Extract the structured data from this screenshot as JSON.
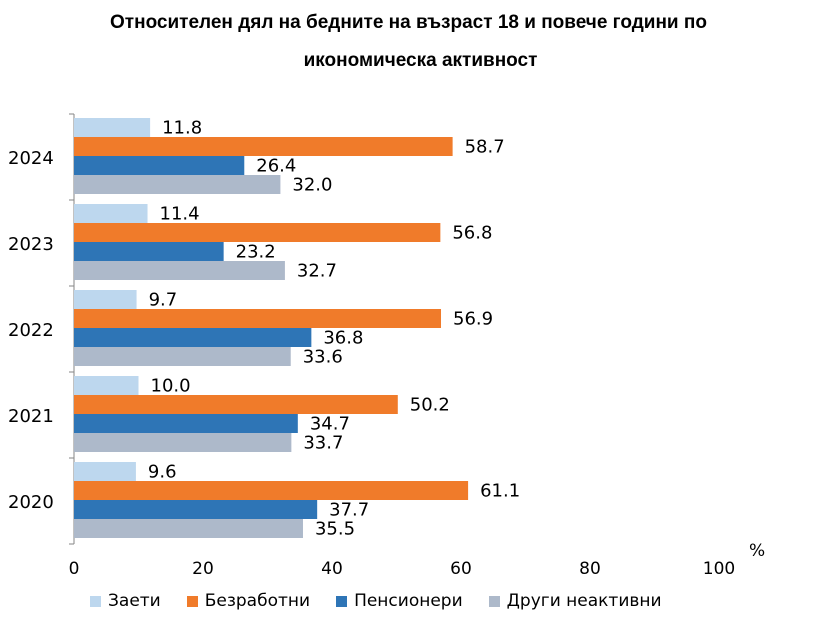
{
  "chart_data": {
    "type": "bar",
    "orientation": "horizontal",
    "title_line1": "Относителен дял на бедните на възраст 18 и повече години по",
    "title_line2": "икономическа активност",
    "unit": "%",
    "categories": [
      "2024",
      "2023",
      "2022",
      "2021",
      "2020"
    ],
    "xlim": [
      0,
      100
    ],
    "xticks": [
      "0",
      "20",
      "40",
      "60",
      "80",
      "100"
    ],
    "grid": false,
    "legend_position": "bottom",
    "series": [
      {
        "name": "Заети",
        "color": "#bdd7ee",
        "values": [
          11.8,
          11.4,
          9.7,
          10.0,
          9.6
        ],
        "labels": [
          "11.8",
          "11.4",
          "9.7",
          "10.0",
          "9.6"
        ]
      },
      {
        "name": "Безработни",
        "color": "#f07b2a",
        "values": [
          58.7,
          56.8,
          56.9,
          50.2,
          61.1
        ],
        "labels": [
          "58.7",
          "56.8",
          "56.9",
          "50.2",
          "61.1"
        ]
      },
      {
        "name": "Пенсионери",
        "color": "#2e75b6",
        "values": [
          26.4,
          23.2,
          36.8,
          34.7,
          37.7
        ],
        "labels": [
          "26.4",
          "23.2",
          "36.8",
          "34.7",
          "37.7"
        ]
      },
      {
        "name": "Други неактивни",
        "color": "#adb9ca",
        "values": [
          32.0,
          32.7,
          33.6,
          33.7,
          35.5
        ],
        "labels": [
          "32.0",
          "32.7",
          "33.6",
          "33.7",
          "35.5"
        ]
      }
    ]
  }
}
